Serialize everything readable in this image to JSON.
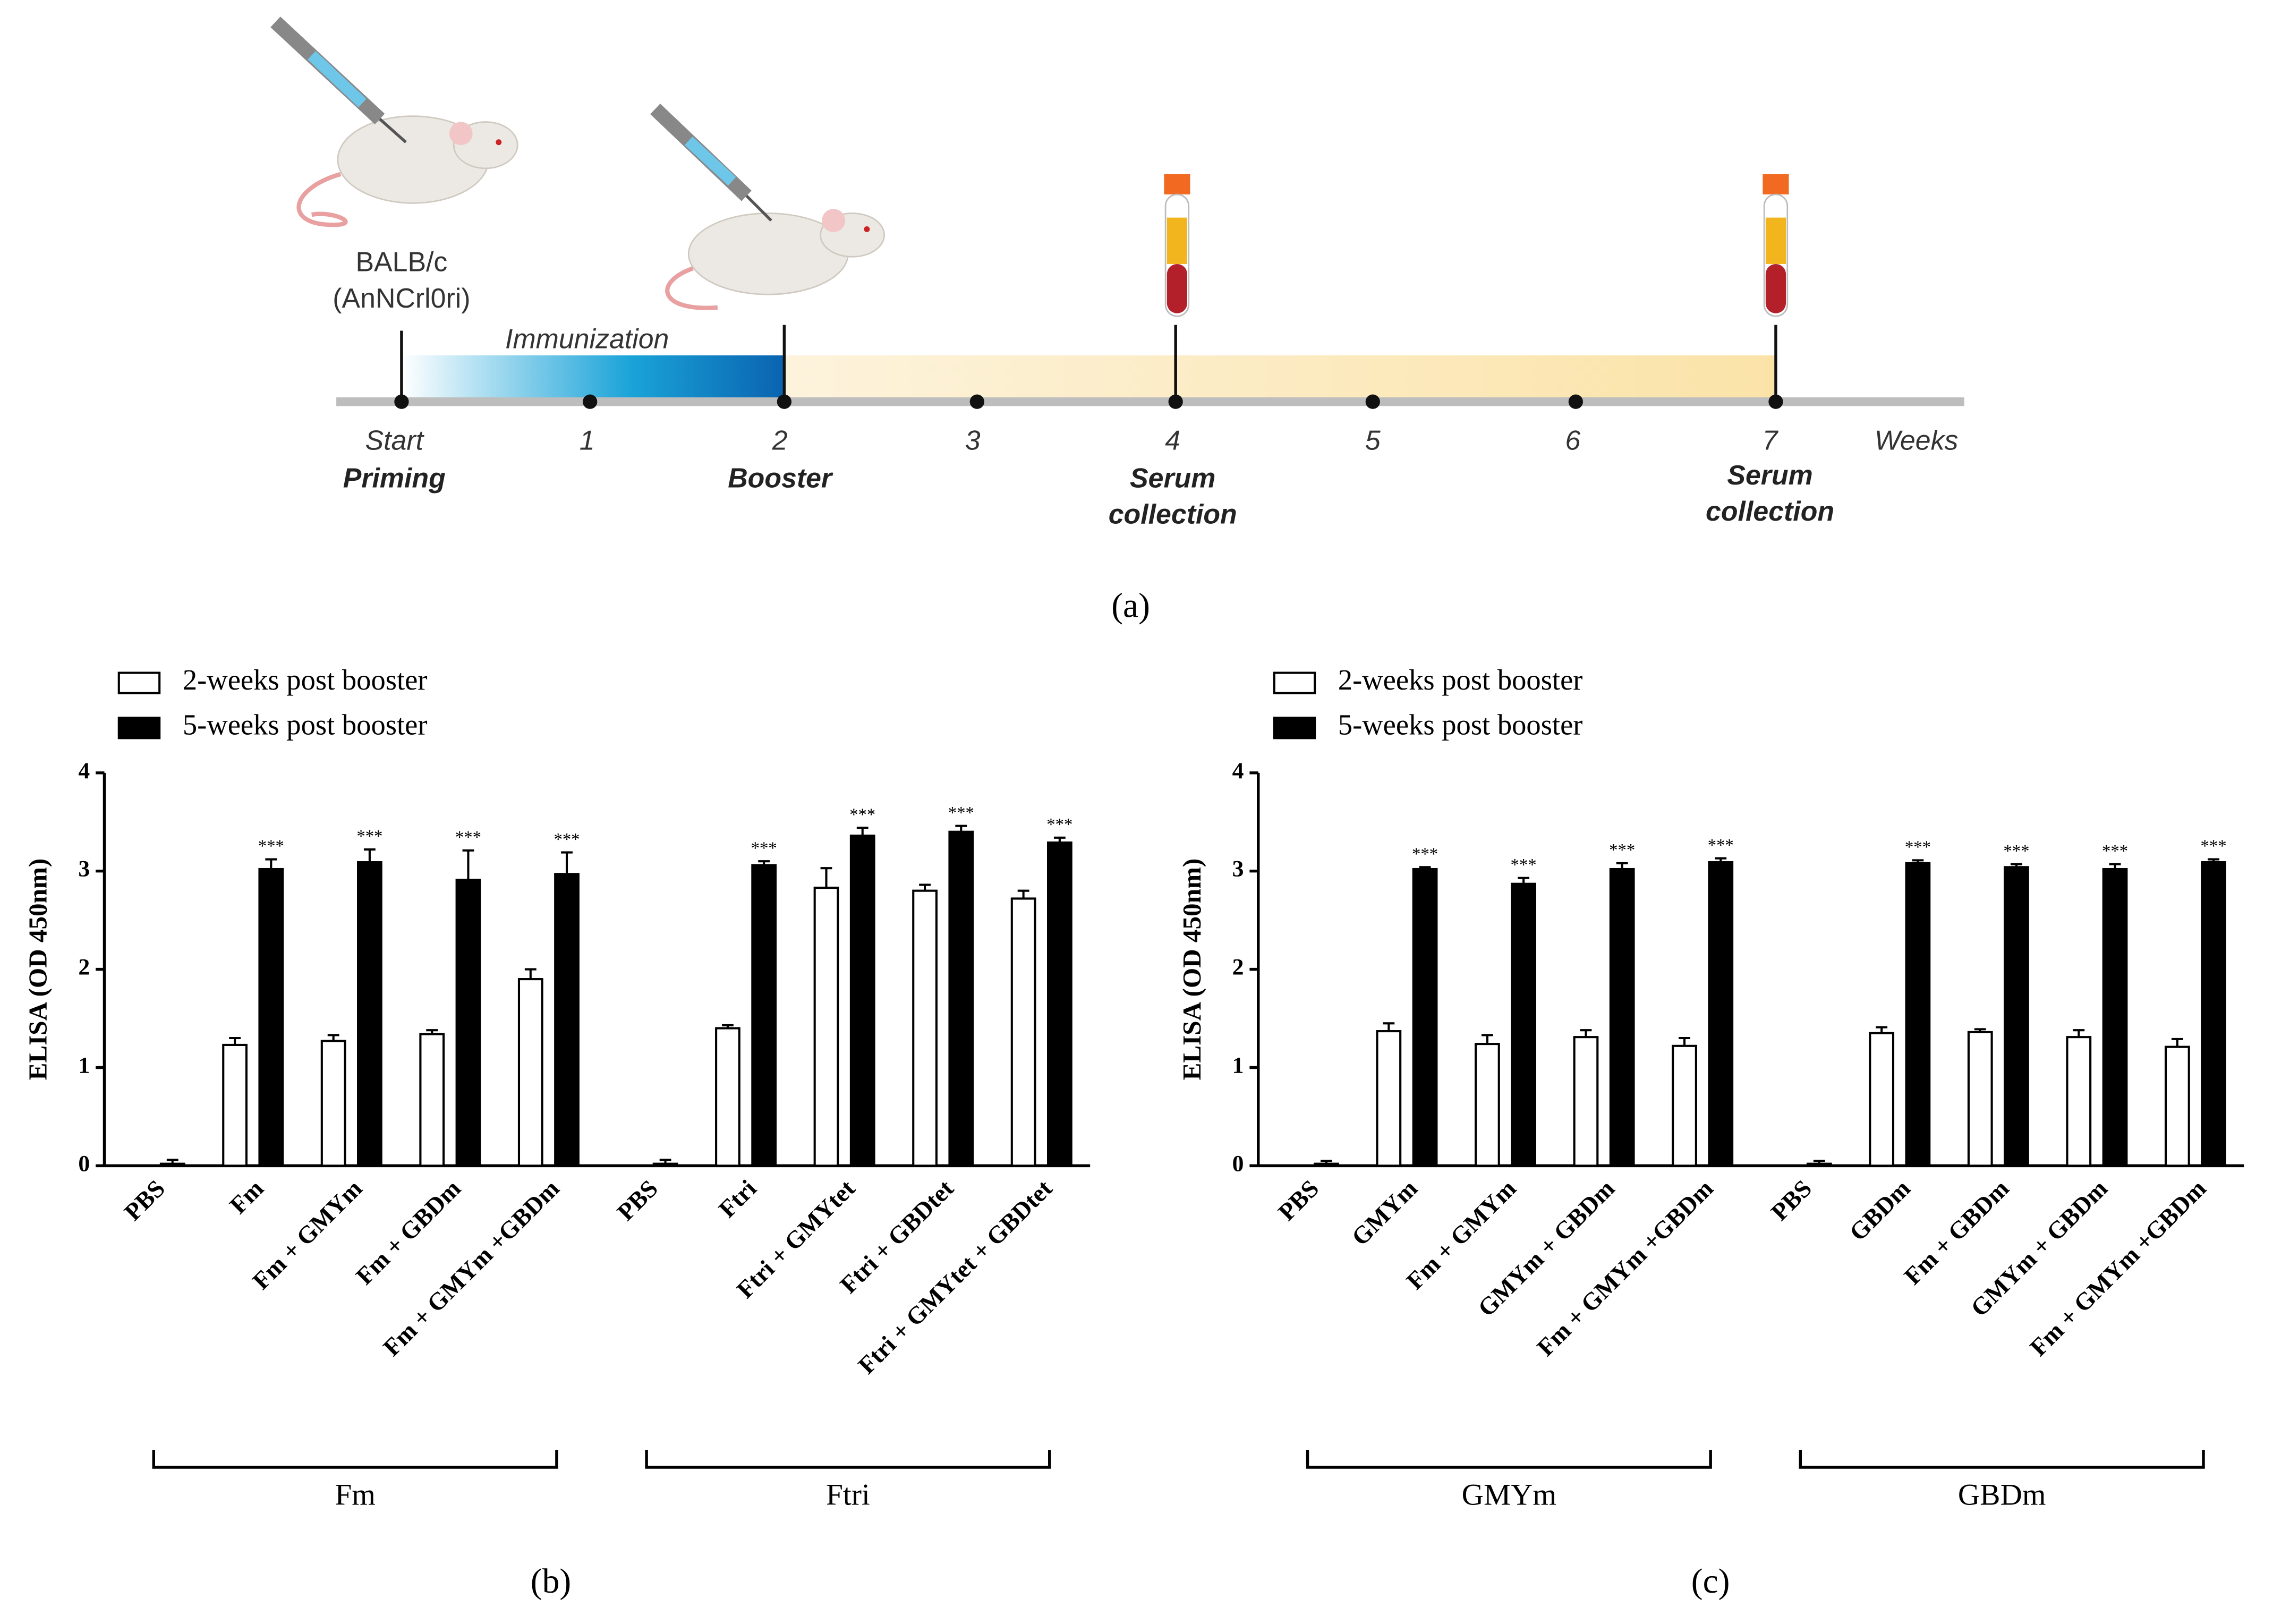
{
  "diagram": {
    "panel_label": "(a)",
    "strain": [
      "BALB/c",
      "(AnNCrl0ri)"
    ],
    "phase": "Immunization",
    "weeks": [
      "Start",
      "1",
      "2",
      "3",
      "4",
      "5",
      "6",
      "7"
    ],
    "unit": "Weeks",
    "events": [
      [
        "Priming"
      ],
      [
        "Booster"
      ],
      [
        "Serum",
        "collection"
      ],
      [
        "Serum",
        "collection"
      ]
    ]
  },
  "chart_data": [
    {
      "type": "bar",
      "panel_label": "(b)",
      "ylabel": "ELISA (OD 450nm)",
      "categories": [
        "PBS",
        "Fm",
        "Fm + GMYm",
        "Fm + GBDm",
        "Fm + GMYm +GBDm",
        "PBS",
        "Ftri",
        "Ftri + GMYtet",
        "Ftri + GBDtet",
        "Ftri + GMYtet + GBDtet"
      ],
      "groups": [
        "Fm",
        "Ftri"
      ],
      "series": [
        {
          "name": "2-weeks post booster",
          "color": "#ffffff",
          "values": [
            0,
            1.23,
            1.27,
            1.34,
            1.9,
            0,
            1.4,
            2.83,
            2.8,
            2.72
          ],
          "errors": [
            0,
            0.07,
            0.06,
            0.04,
            0.1,
            0,
            0.03,
            0.2,
            0.06,
            0.08
          ]
        },
        {
          "name": "5-weeks post booster",
          "color": "#000000",
          "values": [
            0.02,
            3.02,
            3.09,
            2.91,
            2.97,
            0.02,
            3.06,
            3.36,
            3.4,
            3.29
          ],
          "errors": [
            0.04,
            0.1,
            0.13,
            0.3,
            0.22,
            0.04,
            0.04,
            0.08,
            0.06,
            0.05
          ],
          "annotations": [
            null,
            "***",
            "***",
            "***",
            "***",
            null,
            "***",
            "***",
            "***",
            "***"
          ]
        }
      ],
      "ylim": [
        0,
        4
      ],
      "yticks": [
        0,
        1,
        2,
        3,
        4
      ],
      "legend": "top-left"
    },
    {
      "type": "bar",
      "panel_label": "(c)",
      "ylabel": "ELISA (OD 450nm)",
      "categories": [
        "PBS",
        "GMYm",
        "Fm + GMYm",
        "GMYm + GBDm",
        "Fm + GMYm +GBDm",
        "PBS",
        "GBDm",
        "Fm + GBDm",
        "GMYm + GBDm",
        "Fm + GMYm +GBDm"
      ],
      "groups": [
        "GMYm",
        "GBDm"
      ],
      "series": [
        {
          "name": "2-weeks post booster",
          "color": "#ffffff",
          "values": [
            0,
            1.37,
            1.24,
            1.31,
            1.22,
            0,
            1.35,
            1.36,
            1.31,
            1.21
          ],
          "errors": [
            0,
            0.08,
            0.09,
            0.07,
            0.08,
            0,
            0.06,
            0.03,
            0.07,
            0.08
          ]
        },
        {
          "name": "5-weeks post booster",
          "color": "#000000",
          "values": [
            0.02,
            3.02,
            2.87,
            3.02,
            3.09,
            0.02,
            3.08,
            3.04,
            3.02,
            3.09
          ],
          "errors": [
            0.03,
            0.02,
            0.06,
            0.06,
            0.04,
            0.03,
            0.03,
            0.03,
            0.05,
            0.03
          ],
          "annotations": [
            null,
            "***",
            "***",
            "***",
            "***",
            null,
            "***",
            "***",
            "***",
            "***"
          ]
        }
      ],
      "ylim": [
        0,
        4
      ],
      "yticks": [
        0,
        1,
        2,
        3,
        4
      ],
      "legend": "top-left"
    }
  ]
}
